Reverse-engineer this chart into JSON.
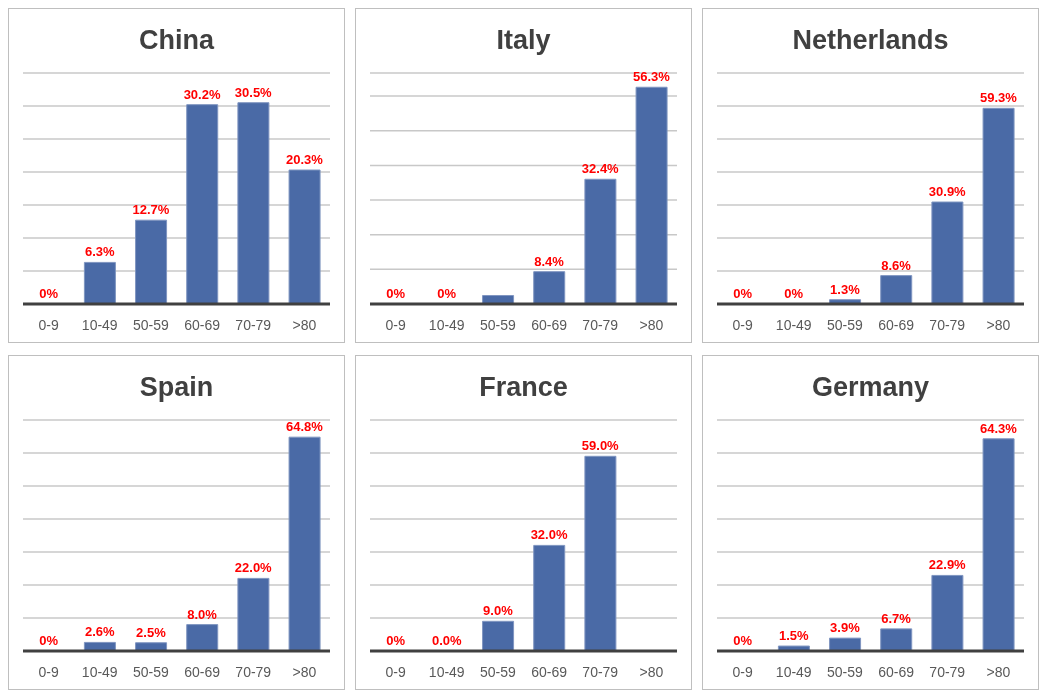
{
  "chart_data": [
    {
      "type": "bar",
      "title": "China",
      "categories": [
        "0-9",
        "10-49",
        "50-59",
        "60-69",
        "70-79",
        ">80"
      ],
      "values": [
        0,
        6.3,
        12.7,
        30.2,
        30.5,
        20.3
      ],
      "value_labels": [
        "0%",
        "6.3%",
        "12.7%",
        "30.2%",
        "30.5%",
        "20.3%"
      ],
      "color": "#4a6aa6",
      "ylim": [
        0,
        35
      ],
      "grid": "y",
      "tick_labels": "x"
    },
    {
      "type": "bar",
      "title": "Italy",
      "categories": [
        "0-9",
        "10-49",
        "50-59",
        "60-69",
        "70-79",
        ">80"
      ],
      "values": [
        0,
        0,
        2.2,
        8.4,
        32.4,
        56.3
      ],
      "value_labels": [
        "0%",
        "0%",
        null,
        "8.4%",
        "32.4%",
        "56.3%"
      ],
      "color": "#4a6aa6",
      "ylim": [
        0,
        60
      ],
      "grid": "y",
      "tick_labels": "x"
    },
    {
      "type": "bar",
      "title": "Netherlands",
      "categories": [
        "0-9",
        "10-49",
        "50-59",
        "60-69",
        "70-79",
        ">80"
      ],
      "values": [
        0,
        0,
        1.3,
        8.6,
        30.9,
        59.3
      ],
      "value_labels": [
        "0%",
        "0%",
        "1.3%",
        "8.6%",
        "30.9%",
        "59.3%"
      ],
      "color": "#4a6aa6",
      "ylim": [
        0,
        70
      ],
      "grid": "y",
      "tick_labels": "x"
    },
    {
      "type": "bar",
      "title": "Spain",
      "categories": [
        "0-9",
        "10-49",
        "50-59",
        "60-69",
        "70-79",
        ">80"
      ],
      "values": [
        0,
        2.6,
        2.5,
        8.0,
        22.0,
        64.8
      ],
      "value_labels": [
        "0%",
        "2.6%",
        "2.5%",
        "8.0%",
        "22.0%",
        "64.8%"
      ],
      "color": "#4a6aa6",
      "ylim": [
        0,
        70
      ],
      "grid": "y",
      "tick_labels": "x"
    },
    {
      "type": "bar",
      "title": "France",
      "categories": [
        "0-9",
        "10-49",
        "50-59",
        "60-69",
        "70-79",
        ">80"
      ],
      "values": [
        0,
        0,
        9.0,
        32.0,
        59.0,
        null
      ],
      "value_labels": [
        "0%",
        "0.0%",
        "9.0%",
        "32.0%",
        "59.0%",
        null
      ],
      "color": "#4a6aa6",
      "ylim": [
        0,
        70
      ],
      "grid": "y",
      "tick_labels": "x"
    },
    {
      "type": "bar",
      "title": "Germany",
      "categories": [
        "0-9",
        "10-49",
        "50-59",
        "60-69",
        "70-79",
        ">80"
      ],
      "values": [
        0,
        1.5,
        3.9,
        6.7,
        22.9,
        64.3
      ],
      "value_labels": [
        "0%",
        "1.5%",
        "3.9%",
        "6.7%",
        "22.9%",
        "64.3%"
      ],
      "color": "#4a6aa6",
      "ylim": [
        0,
        70
      ],
      "grid": "y",
      "tick_labels": "x"
    }
  ]
}
